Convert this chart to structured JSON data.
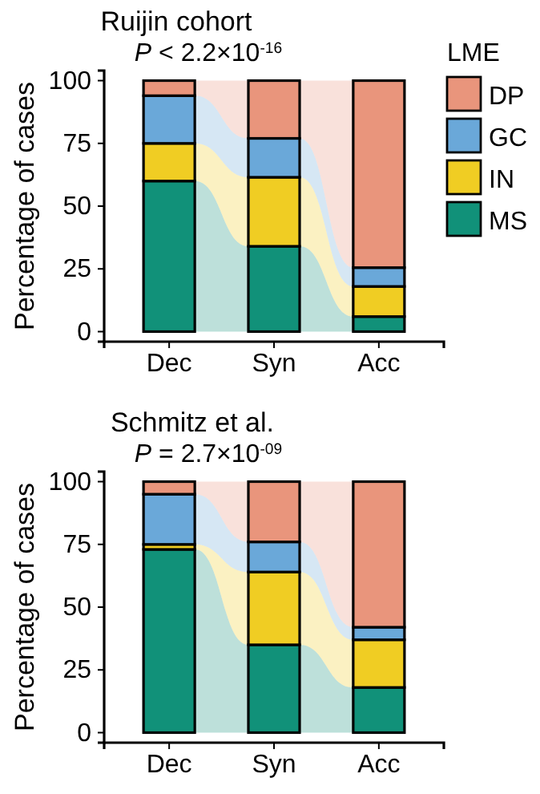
{
  "chart_data": [
    {
      "type": "bar",
      "title": "Ruijin cohort",
      "subtitle": "P < 2.2×10$^{-16}$",
      "ylabel": "Percentage of cases",
      "legend_title": "LME",
      "legend": "right",
      "stacked": true,
      "categories": [
        "Dec",
        "Syn",
        "Acc"
      ],
      "ylim": [
        -4,
        104
      ],
      "yticks": [
        0,
        25,
        50,
        75,
        100
      ],
      "series": [
        {
          "name": "MS",
          "color": "#119179",
          "values": [
            60,
            34,
            6
          ]
        },
        {
          "name": "IN",
          "color": "#f0cd23",
          "values": [
            15,
            27.5,
            12
          ]
        },
        {
          "name": "GC",
          "color": "#6aa8d9",
          "values": [
            19,
            15.5,
            7.5
          ]
        },
        {
          "name": "DP",
          "color": "#e9957c",
          "values": [
            6,
            23,
            74.5
          ]
        }
      ]
    },
    {
      "type": "bar",
      "title": "Schmitz et al.",
      "subtitle": "P = 2.7×10$^{-09}$",
      "ylabel": "Percentage of cases",
      "legend": false,
      "stacked": true,
      "categories": [
        "Dec",
        "Syn",
        "Acc"
      ],
      "ylim": [
        -4,
        104
      ],
      "yticks": [
        0,
        25,
        50,
        75,
        100
      ],
      "series": [
        {
          "color": "#119179",
          "values": [
            73,
            35,
            18
          ]
        },
        {
          "color": "#f0cd23",
          "values": [
            2,
            29,
            19
          ]
        },
        {
          "color": "#6aa8d9",
          "values": [
            20,
            12,
            5
          ]
        },
        {
          "color": "#e9957c",
          "values": [
            5,
            24,
            58
          ]
        }
      ]
    }
  ]
}
